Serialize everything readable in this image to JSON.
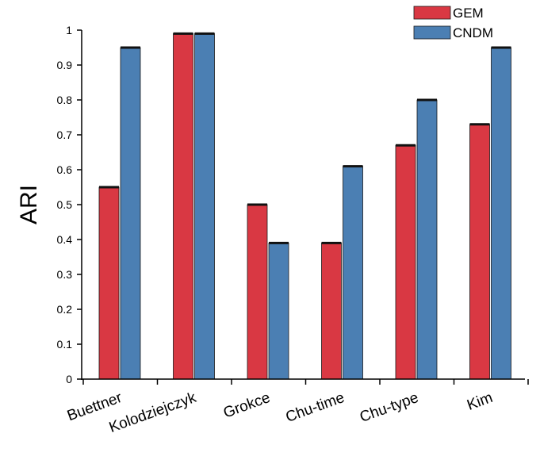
{
  "chart_data": {
    "type": "bar",
    "title": "",
    "xlabel": "",
    "ylabel": "ARI",
    "ylim": [
      0,
      1
    ],
    "yticks": [
      "0",
      "0.1",
      "0.2",
      "0.3",
      "0.4",
      "0.5",
      "0.6",
      "0.7",
      "0.8",
      "0.9",
      "1"
    ],
    "categories": [
      "Buettner",
      "Kolodziejczyk",
      "Grokce",
      "Chu-time",
      "Chu-type",
      "Kim"
    ],
    "series": [
      {
        "name": "GEM",
        "color": "#d93843",
        "values": [
          0.55,
          0.99,
          0.5,
          0.39,
          0.67,
          0.73
        ]
      },
      {
        "name": "CNDM",
        "color": "#4b7fb3",
        "values": [
          0.95,
          0.99,
          0.39,
          0.61,
          0.8,
          0.95
        ]
      }
    ],
    "legend": "top-right",
    "grid": false
  }
}
